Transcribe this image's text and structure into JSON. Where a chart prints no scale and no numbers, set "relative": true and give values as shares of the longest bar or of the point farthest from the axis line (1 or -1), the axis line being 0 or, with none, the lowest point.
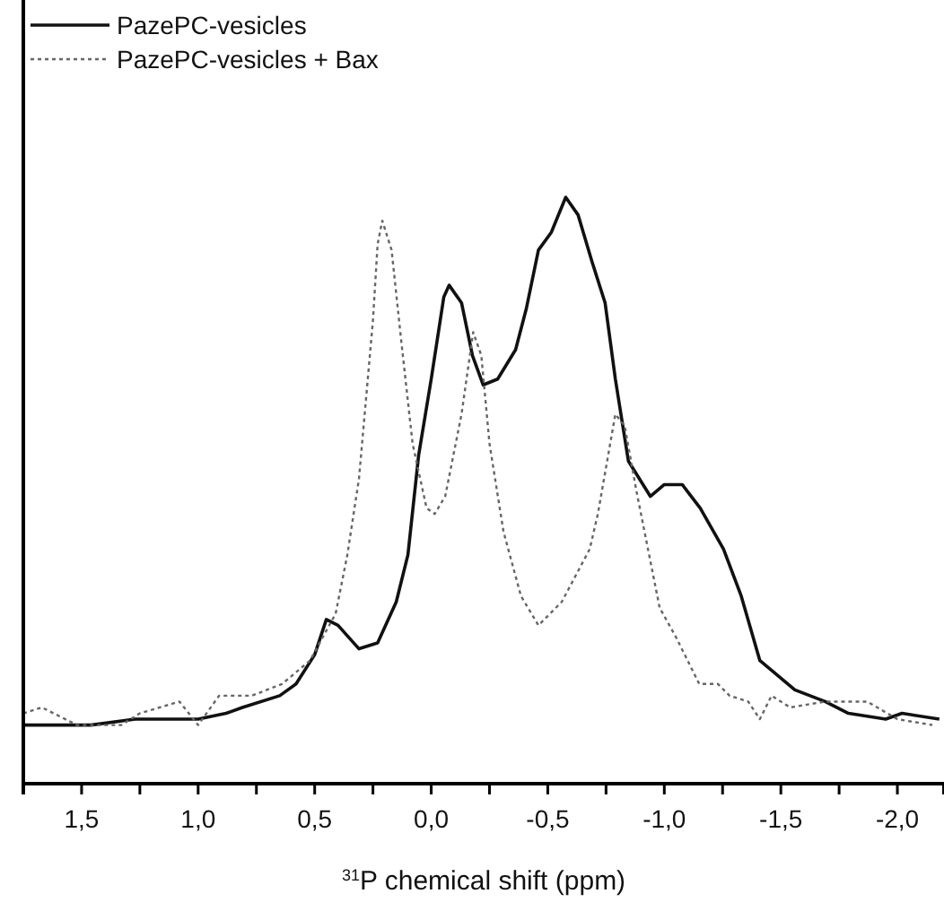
{
  "chart_data": {
    "type": "line",
    "relative": true,
    "xlabel": "$^{31}$P chemical shift (ppm)",
    "xlim": [
      1.75,
      -2.2
    ],
    "xticks": [
      {
        "value": 1.5,
        "label": "1,5"
      },
      {
        "value": 1.25,
        "label": null
      },
      {
        "value": 1.0,
        "label": "1,0"
      },
      {
        "value": 0.75,
        "label": null
      },
      {
        "value": 0.5,
        "label": "0,5"
      },
      {
        "value": 0.25,
        "label": null
      },
      {
        "value": 0,
        "label": "0,0"
      },
      {
        "value": -0.25,
        "label": null
      },
      {
        "value": -0.5,
        "label": "-0,5"
      },
      {
        "value": -0.75,
        "label": null
      },
      {
        "value": -1.0,
        "label": "-1,0"
      },
      {
        "value": -1.25,
        "label": null
      },
      {
        "value": -1.5,
        "label": "-1,5"
      },
      {
        "value": -1.75,
        "label": null
      },
      {
        "value": -2.0,
        "label": "-2,0"
      }
    ],
    "tick_labels": "x",
    "legend": "top left",
    "grid": false,
    "series": [
      {
        "name": "PazePC-vesicles",
        "color": "#111111",
        "line_style": "solid",
        "x": [
          1.75,
          1.55,
          1.46,
          1.27,
          1.0,
          0.88,
          0.81,
          0.65,
          0.58,
          0.5,
          0.45,
          0.4,
          0.31,
          0.23,
          0.15,
          0.1,
          0.054,
          0.0,
          -0.054,
          -0.077,
          -0.13,
          -0.177,
          -0.223,
          -0.285,
          -0.362,
          -0.408,
          -0.46,
          -0.515,
          -0.577,
          -0.63,
          -0.69,
          -0.746,
          -0.79,
          -0.846,
          -0.94,
          -1.0,
          -1.077,
          -1.154,
          -1.254,
          -1.33,
          -1.41,
          -1.56,
          -1.69,
          -1.79,
          -1.95,
          -2.02,
          -2.18
        ],
        "values": [
          0.1,
          0.1,
          0.1,
          0.11,
          0.11,
          0.12,
          0.13,
          0.15,
          0.17,
          0.22,
          0.28,
          0.27,
          0.23,
          0.24,
          0.31,
          0.39,
          0.56,
          0.69,
          0.83,
          0.85,
          0.82,
          0.73,
          0.68,
          0.69,
          0.74,
          0.81,
          0.91,
          0.94,
          1,
          0.97,
          0.89,
          0.82,
          0.69,
          0.55,
          0.49,
          0.51,
          0.51,
          0.47,
          0.4,
          0.32,
          0.21,
          0.16,
          0.14,
          0.12,
          0.11,
          0.12,
          0.11
        ]
      },
      {
        "name": "PazePC-vesicles + Bax",
        "color": "#666666",
        "line_style": "dotted",
        "x": [
          1.75,
          1.67,
          1.52,
          1.33,
          1.25,
          1.08,
          1.0,
          0.91,
          0.77,
          0.64,
          0.52,
          0.41,
          0.36,
          0.31,
          0.25,
          0.23,
          0.21,
          0.17,
          0.13,
          0.08,
          0.02,
          -0.015,
          -0.06,
          -0.13,
          -0.18,
          -0.215,
          -0.25,
          -0.31,
          -0.385,
          -0.46,
          -0.56,
          -0.68,
          -0.715,
          -0.79,
          -0.83,
          -0.88,
          -0.98,
          -1.05,
          -1.15,
          -1.23,
          -1.28,
          -1.36,
          -1.41,
          -1.46,
          -1.54,
          -1.69,
          -1.87,
          -2.0,
          -2.15
        ],
        "values": [
          0.12,
          0.13,
          0.1,
          0.1,
          0.12,
          0.14,
          0.1,
          0.15,
          0.15,
          0.17,
          0.21,
          0.29,
          0.39,
          0.52,
          0.79,
          0.92,
          0.96,
          0.91,
          0.76,
          0.58,
          0.47,
          0.46,
          0.49,
          0.63,
          0.77,
          0.73,
          0.58,
          0.43,
          0.32,
          0.27,
          0.31,
          0.4,
          0.46,
          0.63,
          0.61,
          0.5,
          0.3,
          0.25,
          0.17,
          0.17,
          0.15,
          0.14,
          0.11,
          0.15,
          0.13,
          0.14,
          0.14,
          0.11,
          0.1
        ]
      }
    ]
  }
}
